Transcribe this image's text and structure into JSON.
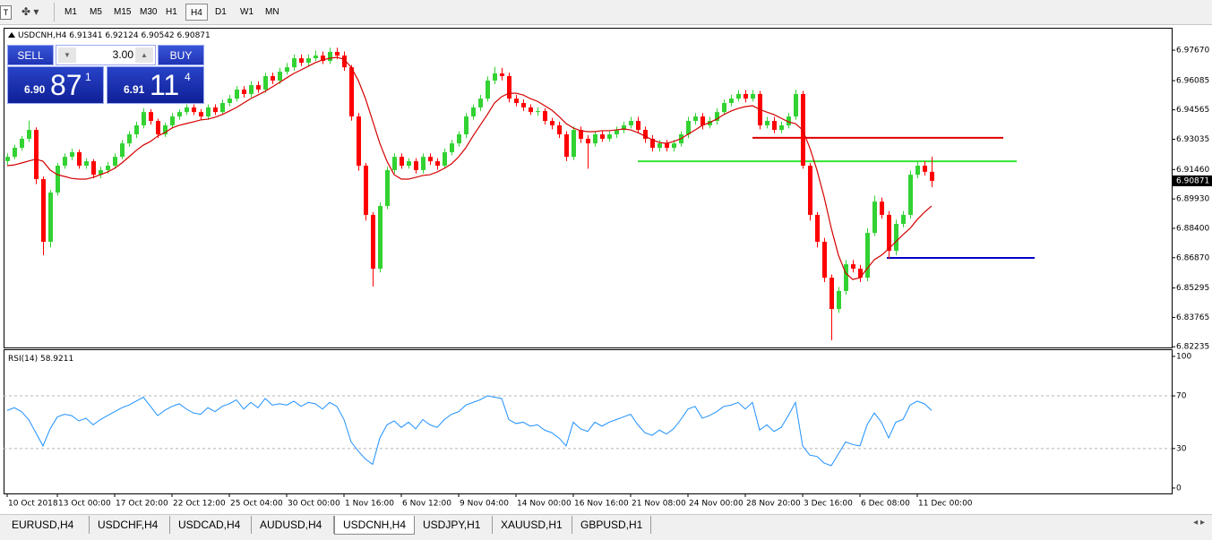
{
  "toolbar": {
    "timeframes": [
      "M1",
      "M5",
      "M15",
      "M30",
      "H1",
      "H4",
      "D1",
      "W1",
      "MN"
    ],
    "active": 5
  },
  "trade_panel": {
    "sell": "SELL",
    "buy": "BUY",
    "lot": "3.00",
    "bid": {
      "prefix": "6.90",
      "big": "87",
      "sup": "1"
    },
    "ask": {
      "prefix": "6.91",
      "big": "11",
      "sup": "4"
    }
  },
  "tabs": {
    "items": [
      "EURUSD,H4",
      "USDCHF,H4",
      "USDCAD,H4",
      "AUDUSD,H4",
      "USDCNH,H4",
      "USDJPY,H1",
      "XAUUSD,H1",
      "GBPUSD,H1"
    ],
    "active": 4
  },
  "chart_data": [
    {
      "type": "candlestick",
      "title": "USDCNH,H4",
      "categories": [
        "10 Oct 2018",
        null,
        null,
        null,
        null,
        null,
        null,
        "13 Oct 00:00",
        null,
        null,
        null,
        null,
        null,
        null,
        null,
        "17 Oct 20:00",
        null,
        null,
        null,
        null,
        null,
        null,
        null,
        "22 Oct 12:00",
        null,
        null,
        null,
        null,
        null,
        null,
        null,
        "25 Oct 04:00",
        null,
        null,
        null,
        null,
        null,
        null,
        null,
        "30 Oct 00:00",
        null,
        null,
        null,
        null,
        null,
        null,
        null,
        "1 Nov 16:00",
        null,
        null,
        null,
        null,
        null,
        null,
        null,
        "6 Nov 12:00",
        null,
        null,
        null,
        null,
        null,
        null,
        null,
        "9 Nov 04:00",
        null,
        null,
        null,
        null,
        null,
        null,
        null,
        "14 Nov 00:00",
        null,
        null,
        null,
        null,
        null,
        null,
        null,
        "16 Nov 16:00",
        null,
        null,
        null,
        null,
        null,
        null,
        null,
        "21 Nov 08:00",
        null,
        null,
        null,
        null,
        null,
        null,
        null,
        "24 Nov 00:00",
        null,
        null,
        null,
        null,
        null,
        null,
        null,
        "28 Nov 20:00",
        null,
        null,
        null,
        null,
        null,
        null,
        null,
        "3 Dec 16:00",
        null,
        null,
        null,
        null,
        null,
        null,
        null,
        "6 Dec 08:00",
        null,
        null,
        null,
        null,
        null,
        null,
        null,
        "11 Dec 00:00",
        null,
        null
      ],
      "open": [
        6.919,
        6.9212,
        6.9259,
        6.9306,
        6.9352,
        6.9096,
        6.877,
        6.9026,
        6.9166,
        6.9212,
        6.9236,
        6.9166,
        6.9189,
        6.9119,
        6.9143,
        6.9166,
        6.9212,
        6.9282,
        6.9329,
        6.9376,
        6.9445,
        6.9399,
        6.9329,
        6.9376,
        6.9422,
        6.9445,
        6.9469,
        6.9445,
        6.9422,
        6.9469,
        6.9445,
        6.9492,
        6.9515,
        6.9562,
        6.9539,
        6.9585,
        6.9562,
        6.9632,
        6.9609,
        6.9655,
        6.9678,
        6.9725,
        6.9702,
        6.9725,
        6.9739,
        6.9711,
        6.9758,
        6.9739,
        6.9678,
        6.9422,
        6.9166,
        6.891,
        6.863,
        6.8956,
        6.9143,
        6.9212,
        6.9166,
        6.9189,
        6.9143,
        6.9212,
        6.9189,
        6.9166,
        6.9236,
        6.9282,
        6.9329,
        6.9422,
        6.9469,
        6.9515,
        6.9609,
        6.9646,
        6.9632,
        6.9515,
        6.9492,
        6.9469,
        6.9445,
        6.945,
        6.9399,
        6.9376,
        6.9329,
        6.9212,
        6.9352,
        6.9306,
        6.9282,
        6.9329,
        6.9306,
        6.9329,
        6.9352,
        6.9376,
        6.9399,
        6.9352,
        6.9306,
        6.9259,
        6.9282,
        6.9259,
        6.9282,
        6.9329,
        6.9399,
        6.9422,
        6.9376,
        6.9399,
        6.9445,
        6.9492,
        6.9515,
        6.9539,
        6.9515,
        6.9539,
        6.9376,
        6.9399,
        6.9352,
        6.9376,
        6.9422,
        6.9539,
        6.9166,
        6.891,
        6.877,
        6.8583,
        6.842,
        6.8514,
        6.8653,
        6.863,
        6.8583,
        6.8816,
        6.8979,
        6.891,
        6.8723,
        6.8863,
        6.891,
        6.9119,
        6.9166,
        6.91341
      ],
      "high": [
        6.923,
        6.9275,
        6.932,
        6.94,
        6.9365,
        6.911,
        6.904,
        6.918,
        6.923,
        6.9255,
        6.925,
        6.9205,
        6.92,
        6.916,
        6.9185,
        6.923,
        6.93,
        6.9345,
        6.9395,
        6.9465,
        6.946,
        6.941,
        6.939,
        6.944,
        6.946,
        6.9485,
        6.9485,
        6.946,
        6.9485,
        6.9485,
        6.951,
        6.9535,
        6.958,
        6.958,
        6.9605,
        6.9605,
        6.965,
        6.965,
        6.9675,
        6.97,
        6.9745,
        6.9745,
        6.9745,
        6.9765,
        6.976,
        6.978,
        6.978,
        6.976,
        6.969,
        6.944,
        6.918,
        6.8925,
        6.8975,
        6.916,
        6.923,
        6.923,
        6.9205,
        6.9205,
        6.923,
        6.923,
        6.9205,
        6.9255,
        6.93,
        6.9345,
        6.944,
        6.9485,
        6.9535,
        6.963,
        6.968,
        6.9675,
        6.965,
        6.9535,
        6.951,
        6.9485,
        6.947,
        6.9465,
        6.9415,
        6.9395,
        6.9345,
        6.937,
        6.937,
        6.9325,
        6.9345,
        6.9345,
        6.9345,
        6.937,
        6.9395,
        6.942,
        6.942,
        6.937,
        6.9325,
        6.93,
        6.93,
        6.93,
        6.9345,
        6.942,
        6.944,
        6.944,
        6.942,
        6.9465,
        6.951,
        6.9535,
        6.956,
        6.956,
        6.956,
        6.9555,
        6.942,
        6.942,
        6.9395,
        6.944,
        6.9562,
        6.9555,
        6.918,
        6.8925,
        6.879,
        6.86,
        6.8535,
        6.8675,
        6.8675,
        6.865,
        6.884,
        6.901,
        6.9,
        6.893,
        6.8885,
        6.893,
        6.914,
        6.919,
        6.919,
        6.92124
      ],
      "low": [
        6.917,
        6.92,
        6.9245,
        6.929,
        6.907,
        6.87,
        6.874,
        6.901,
        6.915,
        6.9195,
        6.915,
        6.915,
        6.91,
        6.91,
        6.9125,
        6.915,
        6.92,
        6.9265,
        6.931,
        6.936,
        6.938,
        6.931,
        6.9315,
        6.936,
        6.9405,
        6.943,
        6.943,
        6.9405,
        6.9405,
        6.943,
        6.943,
        6.9475,
        6.95,
        6.952,
        6.952,
        6.9545,
        6.9545,
        6.959,
        6.959,
        6.964,
        6.966,
        6.9685,
        6.9685,
        6.971,
        6.9695,
        6.9695,
        6.972,
        6.966,
        6.94,
        6.914,
        6.888,
        6.8537,
        6.861,
        6.894,
        6.9125,
        6.915,
        6.915,
        6.9125,
        6.9125,
        6.917,
        6.9145,
        6.915,
        6.922,
        6.9265,
        6.931,
        6.9405,
        6.945,
        6.95,
        6.959,
        6.961,
        6.9495,
        6.9475,
        6.945,
        6.943,
        6.9425,
        6.938,
        6.9355,
        6.931,
        6.919,
        6.9195,
        6.9285,
        6.915,
        6.9265,
        6.929,
        6.929,
        6.931,
        6.9335,
        6.936,
        6.9335,
        6.9285,
        6.924,
        6.924,
        6.924,
        6.924,
        6.9265,
        6.931,
        6.938,
        6.9355,
        6.936,
        6.938,
        6.943,
        6.9475,
        6.95,
        6.9495,
        6.95,
        6.9355,
        6.936,
        6.9335,
        6.9335,
        6.936,
        6.9405,
        6.915,
        6.888,
        6.874,
        6.856,
        6.8257,
        6.84,
        6.8495,
        6.861,
        6.856,
        6.8565,
        6.88,
        6.889,
        6.868,
        6.87,
        6.8845,
        6.889,
        6.91,
        6.9115,
        6.90542
      ],
      "close": [
        6.9212,
        6.9259,
        6.9306,
        6.9352,
        6.9096,
        6.877,
        6.9026,
        6.9166,
        6.9212,
        6.9236,
        6.9166,
        6.9189,
        6.9119,
        6.9143,
        6.9166,
        6.9212,
        6.9282,
        6.9329,
        6.9376,
        6.9445,
        6.9399,
        6.9329,
        6.9376,
        6.9422,
        6.9445,
        6.9469,
        6.9445,
        6.9422,
        6.9469,
        6.9445,
        6.9492,
        6.9515,
        6.9562,
        6.9539,
        6.9585,
        6.9562,
        6.9632,
        6.9609,
        6.9655,
        6.9678,
        6.9725,
        6.9702,
        6.9725,
        6.9739,
        6.9711,
        6.9758,
        6.9739,
        6.9678,
        6.9422,
        6.9166,
        6.891,
        6.863,
        6.8956,
        6.9143,
        6.9212,
        6.9166,
        6.9189,
        6.9143,
        6.9212,
        6.9189,
        6.9166,
        6.9236,
        6.9282,
        6.9329,
        6.9422,
        6.9469,
        6.9515,
        6.9609,
        6.9646,
        6.9632,
        6.9515,
        6.9492,
        6.9469,
        6.9445,
        6.945,
        6.9399,
        6.9376,
        6.9329,
        6.9212,
        6.9352,
        6.9306,
        6.9282,
        6.9329,
        6.9306,
        6.9329,
        6.9352,
        6.9376,
        6.9399,
        6.9352,
        6.9306,
        6.9259,
        6.9282,
        6.9259,
        6.9282,
        6.9329,
        6.9399,
        6.9422,
        6.9376,
        6.9399,
        6.9445,
        6.9492,
        6.9515,
        6.9539,
        6.9515,
        6.9539,
        6.9376,
        6.9399,
        6.9352,
        6.9376,
        6.9422,
        6.9539,
        6.9166,
        6.891,
        6.877,
        6.8583,
        6.842,
        6.8514,
        6.8653,
        6.863,
        6.8583,
        6.8816,
        6.8979,
        6.891,
        6.8723,
        6.8863,
        6.891,
        6.9119,
        6.9166,
        6.91341,
        6.90871
      ],
      "up_color": "#32d232",
      "down_color": "#ff0000",
      "ma": {
        "color": "#d40000",
        "values": [
          6.9166,
          6.917,
          6.918,
          6.919,
          6.92,
          6.9189,
          6.9143,
          6.9119,
          6.911,
          6.91,
          6.9096,
          6.9096,
          6.9105,
          6.9119,
          6.9133,
          6.9152,
          6.918,
          6.9212,
          6.9245,
          6.9273,
          6.9292,
          6.932,
          6.9338,
          6.9362,
          6.9376,
          6.9385,
          6.9394,
          6.9404,
          6.9408,
          6.9418,
          6.9432,
          6.945,
          6.9469,
          6.9492,
          6.9515,
          6.9534,
          6.9553,
          6.9576,
          6.9599,
          6.9623,
          6.9646,
          6.9664,
          6.9683,
          6.9702,
          6.9716,
          6.9725,
          6.973,
          6.972,
          6.9678,
          6.9609,
          6.9515,
          6.9399,
          6.9282,
          6.9189,
          6.9119,
          6.9096,
          6.9096,
          6.9105,
          6.9115,
          6.9119,
          6.9133,
          6.9152,
          6.9175,
          6.9212,
          6.9259,
          6.932,
          6.9376,
          6.9432,
          6.9492,
          6.9525,
          6.9543,
          6.9543,
          6.9534,
          6.9515,
          6.9501,
          6.9478,
          6.9455,
          6.9422,
          6.9385,
          6.9362,
          6.9348,
          6.9343,
          6.9343,
          6.9348,
          6.9348,
          6.9352,
          6.9357,
          6.9352,
          6.9338,
          6.932,
          6.9301,
          6.9287,
          6.9282,
          6.9292,
          6.9306,
          6.9329,
          6.9352,
          6.9376,
          6.939,
          6.9408,
          6.9432,
          6.945,
          6.9464,
          6.9473,
          6.9478,
          6.9459,
          6.9445,
          6.9432,
          6.9413,
          6.9394,
          6.9385,
          6.9352,
          6.9259,
          6.9143,
          6.9003,
          6.884,
          6.87,
          6.8607,
          6.8574,
          6.8583,
          6.863,
          6.8677,
          6.87,
          6.8733,
          6.877,
          6.8807,
          6.884,
          6.8886,
          6.8924,
          6.8956
        ]
      },
      "hlines": [
        {
          "value": 6.9311,
          "color": "#e00000"
        },
        {
          "value": 6.9189,
          "color": "#32e632"
        },
        {
          "value": 6.8686,
          "color": "#0000c8"
        }
      ],
      "ylim": [
        6.822,
        6.9879
      ],
      "yticks": [
        {
          "value": 6.9767,
          "label": "6.97670"
        },
        6.96085,
        6.94565,
        6.93035,
        {
          "value": 6.9146,
          "label": "6.91460"
        },
        {
          "value": 6.8993,
          "label": "6.89930"
        },
        {
          "value": 6.884,
          "label": "6.88400"
        },
        {
          "value": 6.8687,
          "label": "6.86870"
        },
        6.85295,
        6.83765,
        6.82235
      ]
    },
    {
      "type": "line",
      "title": "RSI(14)",
      "color": "#1e90ff",
      "values": [
        59,
        61,
        58,
        52,
        42,
        32,
        45,
        54,
        56,
        55,
        51,
        53,
        48,
        52,
        55,
        58,
        61,
        63,
        66,
        69,
        62,
        55,
        59,
        62,
        64,
        60,
        57,
        56,
        61,
        58,
        62,
        64,
        67,
        60,
        65,
        61,
        68,
        63,
        64,
        63,
        66,
        62,
        65,
        64,
        60,
        65,
        62,
        52,
        35,
        28,
        22,
        18,
        38,
        48,
        51,
        46,
        50,
        45,
        52,
        48,
        46,
        52,
        56,
        58,
        63,
        65,
        67,
        70,
        69,
        68,
        52,
        49,
        50,
        47,
        48,
        44,
        42,
        38,
        32,
        50,
        45,
        43,
        50,
        47,
        50,
        52,
        54,
        56,
        48,
        42,
        40,
        44,
        41,
        45,
        52,
        60,
        62,
        53,
        55,
        58,
        62,
        63,
        65,
        60,
        65,
        44,
        48,
        43,
        46,
        55,
        65,
        32,
        25,
        24,
        19,
        17,
        26,
        35,
        33,
        32,
        48,
        57,
        50,
        38,
        50,
        52,
        63,
        66,
        64,
        58.9211
      ],
      "levels": [
        70,
        30
      ],
      "ylim": [
        -4.1,
        105.4
      ],
      "yticks": [
        100,
        70,
        30,
        0
      ]
    }
  ]
}
